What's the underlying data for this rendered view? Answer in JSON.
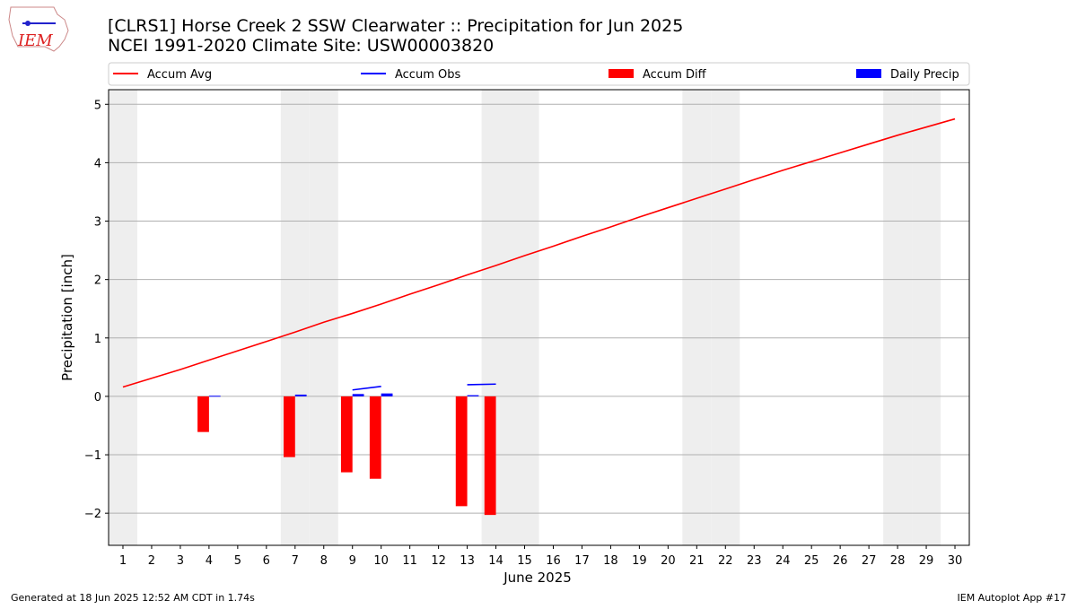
{
  "logo_text": "IEM",
  "footer_left": "Generated at 18 Jun 2025 12:52 AM CDT in 1.74s",
  "footer_right": "IEM Autoplot App #17",
  "chart_data": {
    "type": "combo",
    "title": "[CLRS1] Horse Creek 2 SSW Clearwater :: Precipitation for Jun 2025",
    "subtitle": "NCEI 1991-2020 Climate Site: USW00003820",
    "x_label": "June 2025",
    "y_label": "Precipitation [inch]",
    "x": [
      1,
      2,
      3,
      4,
      5,
      6,
      7,
      8,
      9,
      10,
      11,
      12,
      13,
      14,
      15,
      16,
      17,
      18,
      19,
      20,
      21,
      22,
      23,
      24,
      25,
      26,
      27,
      28,
      29,
      30
    ],
    "xlim": [
      0.5,
      30.5
    ],
    "xticks": [
      1,
      2,
      3,
      4,
      5,
      6,
      7,
      8,
      9,
      10,
      11,
      12,
      13,
      14,
      15,
      16,
      17,
      18,
      19,
      20,
      21,
      22,
      23,
      24,
      25,
      26,
      27,
      28,
      29,
      30
    ],
    "ylim": [
      -2.55,
      5.25
    ],
    "yticks": [
      {
        "value": -2,
        "label": "−2"
      },
      {
        "value": -1,
        "label": "−1"
      },
      0,
      1,
      2,
      3,
      4,
      5
    ],
    "grid": true,
    "shaded_days": [
      1,
      7,
      8,
      14,
      15,
      21,
      22,
      28,
      29
    ],
    "shade_color": "#eeeeee",
    "series": [
      {
        "name": "Accum Avg",
        "type": "line",
        "color": "#ff0000",
        "values": [
          0.16,
          0.31,
          0.46,
          0.62,
          0.78,
          0.94,
          1.1,
          1.27,
          1.42,
          1.58,
          1.75,
          1.91,
          2.08,
          2.24,
          2.41,
          2.57,
          2.74,
          2.9,
          3.07,
          3.23,
          3.39,
          3.55,
          3.71,
          3.87,
          4.02,
          4.17,
          4.32,
          4.47,
          4.61,
          4.75
        ]
      },
      {
        "name": "Accum Obs",
        "type": "line",
        "color": "#0000ff",
        "values": [
          null,
          null,
          null,
          0.01,
          null,
          null,
          0.06,
          null,
          0.11,
          0.17,
          null,
          null,
          0.2,
          0.21,
          null,
          null,
          null,
          null,
          null,
          null,
          null,
          null,
          null,
          null,
          null,
          null,
          null,
          null,
          null,
          null
        ]
      },
      {
        "name": "Accum Diff",
        "type": "bar",
        "color": "#ff0000",
        "values": [
          null,
          null,
          null,
          -0.61,
          null,
          null,
          -1.04,
          null,
          -1.3,
          -1.41,
          null,
          null,
          -1.88,
          -2.03,
          null,
          null,
          null,
          null,
          null,
          null,
          null,
          null,
          null,
          null,
          null,
          null,
          null,
          null,
          null,
          null
        ]
      },
      {
        "name": "Daily Precip",
        "type": "bar",
        "color": "#0000ff",
        "values": [
          null,
          null,
          null,
          0.01,
          null,
          null,
          0.03,
          null,
          0.04,
          0.05,
          null,
          null,
          0.02,
          null,
          null,
          null,
          null,
          null,
          null,
          null,
          null,
          null,
          null,
          null,
          null,
          null,
          null,
          null,
          null,
          null
        ]
      }
    ]
  }
}
